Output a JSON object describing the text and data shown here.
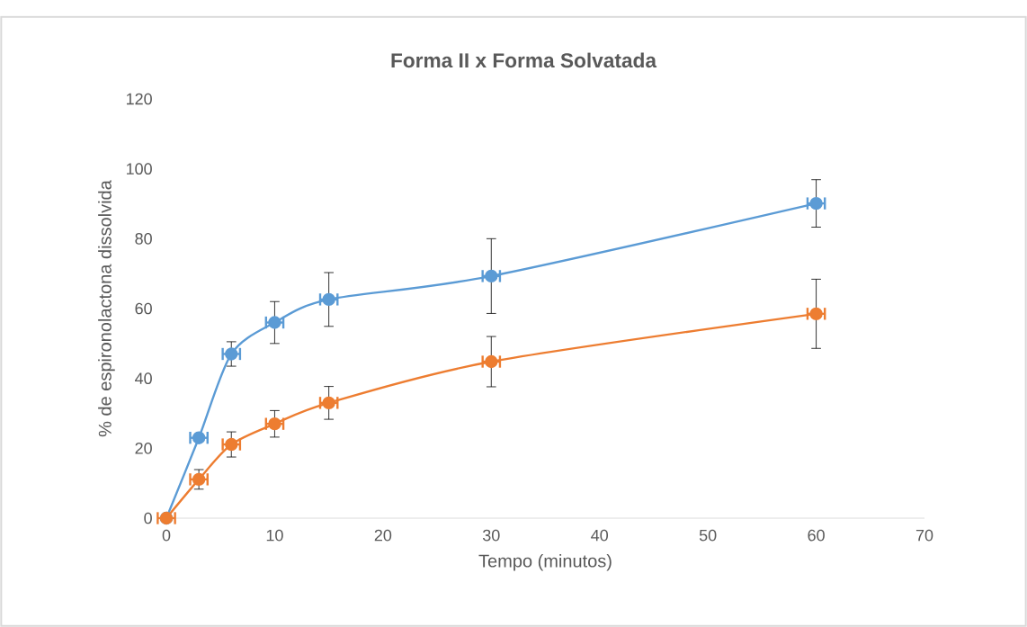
{
  "chart_data": {
    "type": "line",
    "title": "Forma II x Forma Solvatada",
    "xlabel": "Tempo (minutos)",
    "ylabel": "% de espironolactona dissolvida",
    "xlim": [
      0,
      70
    ],
    "xticks": [
      0,
      10,
      20,
      30,
      40,
      50,
      60,
      70
    ],
    "ylim": [
      0,
      120
    ],
    "yticks": [
      0,
      20,
      40,
      60,
      80,
      100,
      120
    ],
    "marker": "circle",
    "grid": false,
    "series": [
      {
        "color": "#5b9bd5",
        "x": [
          0,
          3,
          6,
          10,
          15,
          30,
          60
        ],
        "values": [
          0,
          23,
          47,
          56,
          62.6,
          69.3,
          90.1
        ],
        "errors": [
          null,
          null,
          3.5,
          6,
          7.7,
          10.7,
          6.8
        ],
        "xerrors": [
          null,
          0.8,
          0.8,
          0.8,
          0.8,
          0.8,
          0.8
        ]
      },
      {
        "color": "#ed7d31",
        "x": [
          0,
          3,
          6,
          10,
          15,
          30,
          60
        ],
        "values": [
          0,
          11.1,
          21.1,
          27,
          33,
          44.8,
          58.5
        ],
        "errors": [
          null,
          2.8,
          3.6,
          3.8,
          4.7,
          7.2,
          9.9
        ],
        "xerrors": [
          0.8,
          0.8,
          0.8,
          0.8,
          0.8,
          0.8,
          0.8
        ]
      }
    ]
  }
}
